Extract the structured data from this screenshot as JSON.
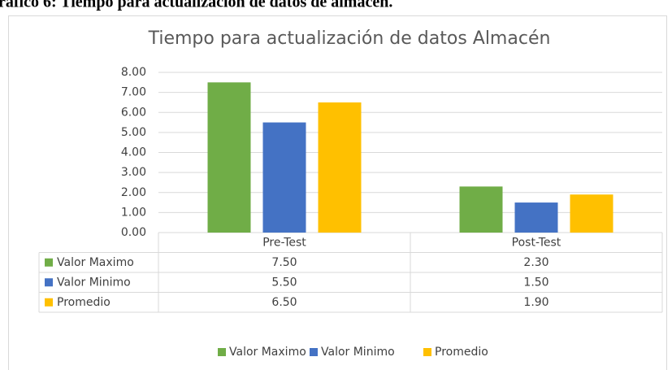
{
  "caption": "ráfico 6: Tiempo para actualización de datos de almacén.",
  "chart_data": {
    "type": "bar",
    "title": "Tiempo para actualización de datos Almacén",
    "categories": [
      "Pre-Test",
      "Post-Test"
    ],
    "series": [
      {
        "name": "Valor Maximo",
        "color": "#70ad47",
        "values": [
          7.5,
          2.3
        ],
        "value_labels": [
          "7.50",
          "2.30"
        ]
      },
      {
        "name": "Valor Minimo",
        "color": "#4472c4",
        "values": [
          5.5,
          1.5
        ],
        "value_labels": [
          "5.50",
          "1.50"
        ]
      },
      {
        "name": "Promedio",
        "color": "#ffc000",
        "values": [
          6.5,
          1.9
        ],
        "value_labels": [
          "6.50",
          "1.90"
        ]
      }
    ],
    "ylim": [
      0,
      8
    ],
    "yticks": [
      {
        "value": 0,
        "label": "0.00"
      },
      {
        "value": 1,
        "label": "1.00"
      },
      {
        "value": 2,
        "label": "2.00"
      },
      {
        "value": 3,
        "label": "3.00"
      },
      {
        "value": 4,
        "label": "4.00"
      },
      {
        "value": 5,
        "label": "5.00"
      },
      {
        "value": 6,
        "label": "6.00"
      },
      {
        "value": 7,
        "label": "7.00"
      },
      {
        "value": 8,
        "label": "8.00"
      }
    ],
    "grid": true,
    "legend": "bottom"
  }
}
